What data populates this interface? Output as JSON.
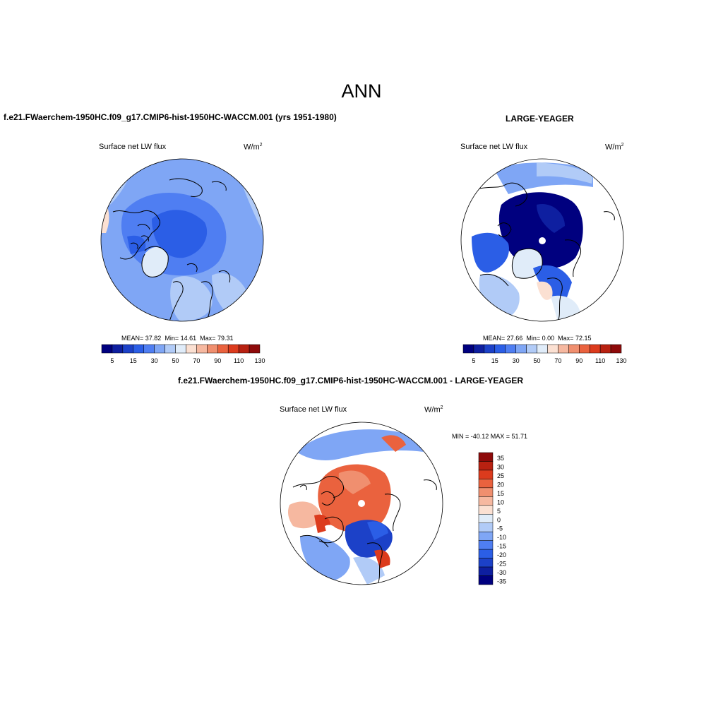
{
  "page_title": "ANN",
  "panels": [
    {
      "title": "f.e21.FWaerchem-1950HC.f09_g17.CMIP6-hist-1950HC-WACCM.001 (yrs 1951-1980)",
      "variable": "Surface net LW flux",
      "units_base": "W/m",
      "units_exp": "2",
      "stats": {
        "mean_label": "MEAN=",
        "mean": "37.82",
        "min_label": "Min=",
        "min": "14.61",
        "max_label": "Max=",
        "max": "79.31"
      },
      "colorbar_ticks": [
        "5",
        "15",
        "30",
        "50",
        "70",
        "90",
        "110",
        "130"
      ]
    },
    {
      "title": "LARGE-YEAGER",
      "variable": "Surface net LW flux",
      "units_base": "W/m",
      "units_exp": "2",
      "stats": {
        "mean_label": "MEAN=",
        "mean": "27.66",
        "min_label": "Min=",
        "min": "0.00",
        "max_label": "Max=",
        "max": "72.15"
      },
      "colorbar_ticks": [
        "5",
        "15",
        "30",
        "50",
        "70",
        "90",
        "110",
        "130"
      ]
    },
    {
      "title": "f.e21.FWaerchem-1950HC.f09_g17.CMIP6-hist-1950HC-WACCM.001 - LARGE-YEAGER",
      "variable": "Surface net LW flux",
      "units_base": "W/m",
      "units_exp": "2",
      "minmax": "MIN = -40.12 MAX =  51.71",
      "colorbar_ticks": [
        "35",
        "30",
        "25",
        "20",
        "15",
        "10",
        "5",
        "0",
        "-5",
        "-10",
        "-15",
        "-20",
        "-25",
        "-30",
        "-35"
      ]
    }
  ],
  "colors": {
    "abs_scale": [
      "#00007f",
      "#0e1fa0",
      "#1c41c8",
      "#2b5ee6",
      "#4f7ef2",
      "#7fa6f5",
      "#b1cbf7",
      "#e0ecf9",
      "#fbe0d2",
      "#f6b8a0",
      "#f08f6f",
      "#ea623e",
      "#dc3b1d",
      "#b82111",
      "#8e0a0a"
    ],
    "diff_scale": [
      "#8e0a0a",
      "#b82111",
      "#dc3b1d",
      "#ea623e",
      "#f08f6f",
      "#f6b8a0",
      "#fbe0d2",
      "#e0ecf9",
      "#b1cbf7",
      "#7fa6f5",
      "#4f7ef2",
      "#2b5ee6",
      "#1c41c8",
      "#0e1fa0",
      "#00007f"
    ]
  }
}
